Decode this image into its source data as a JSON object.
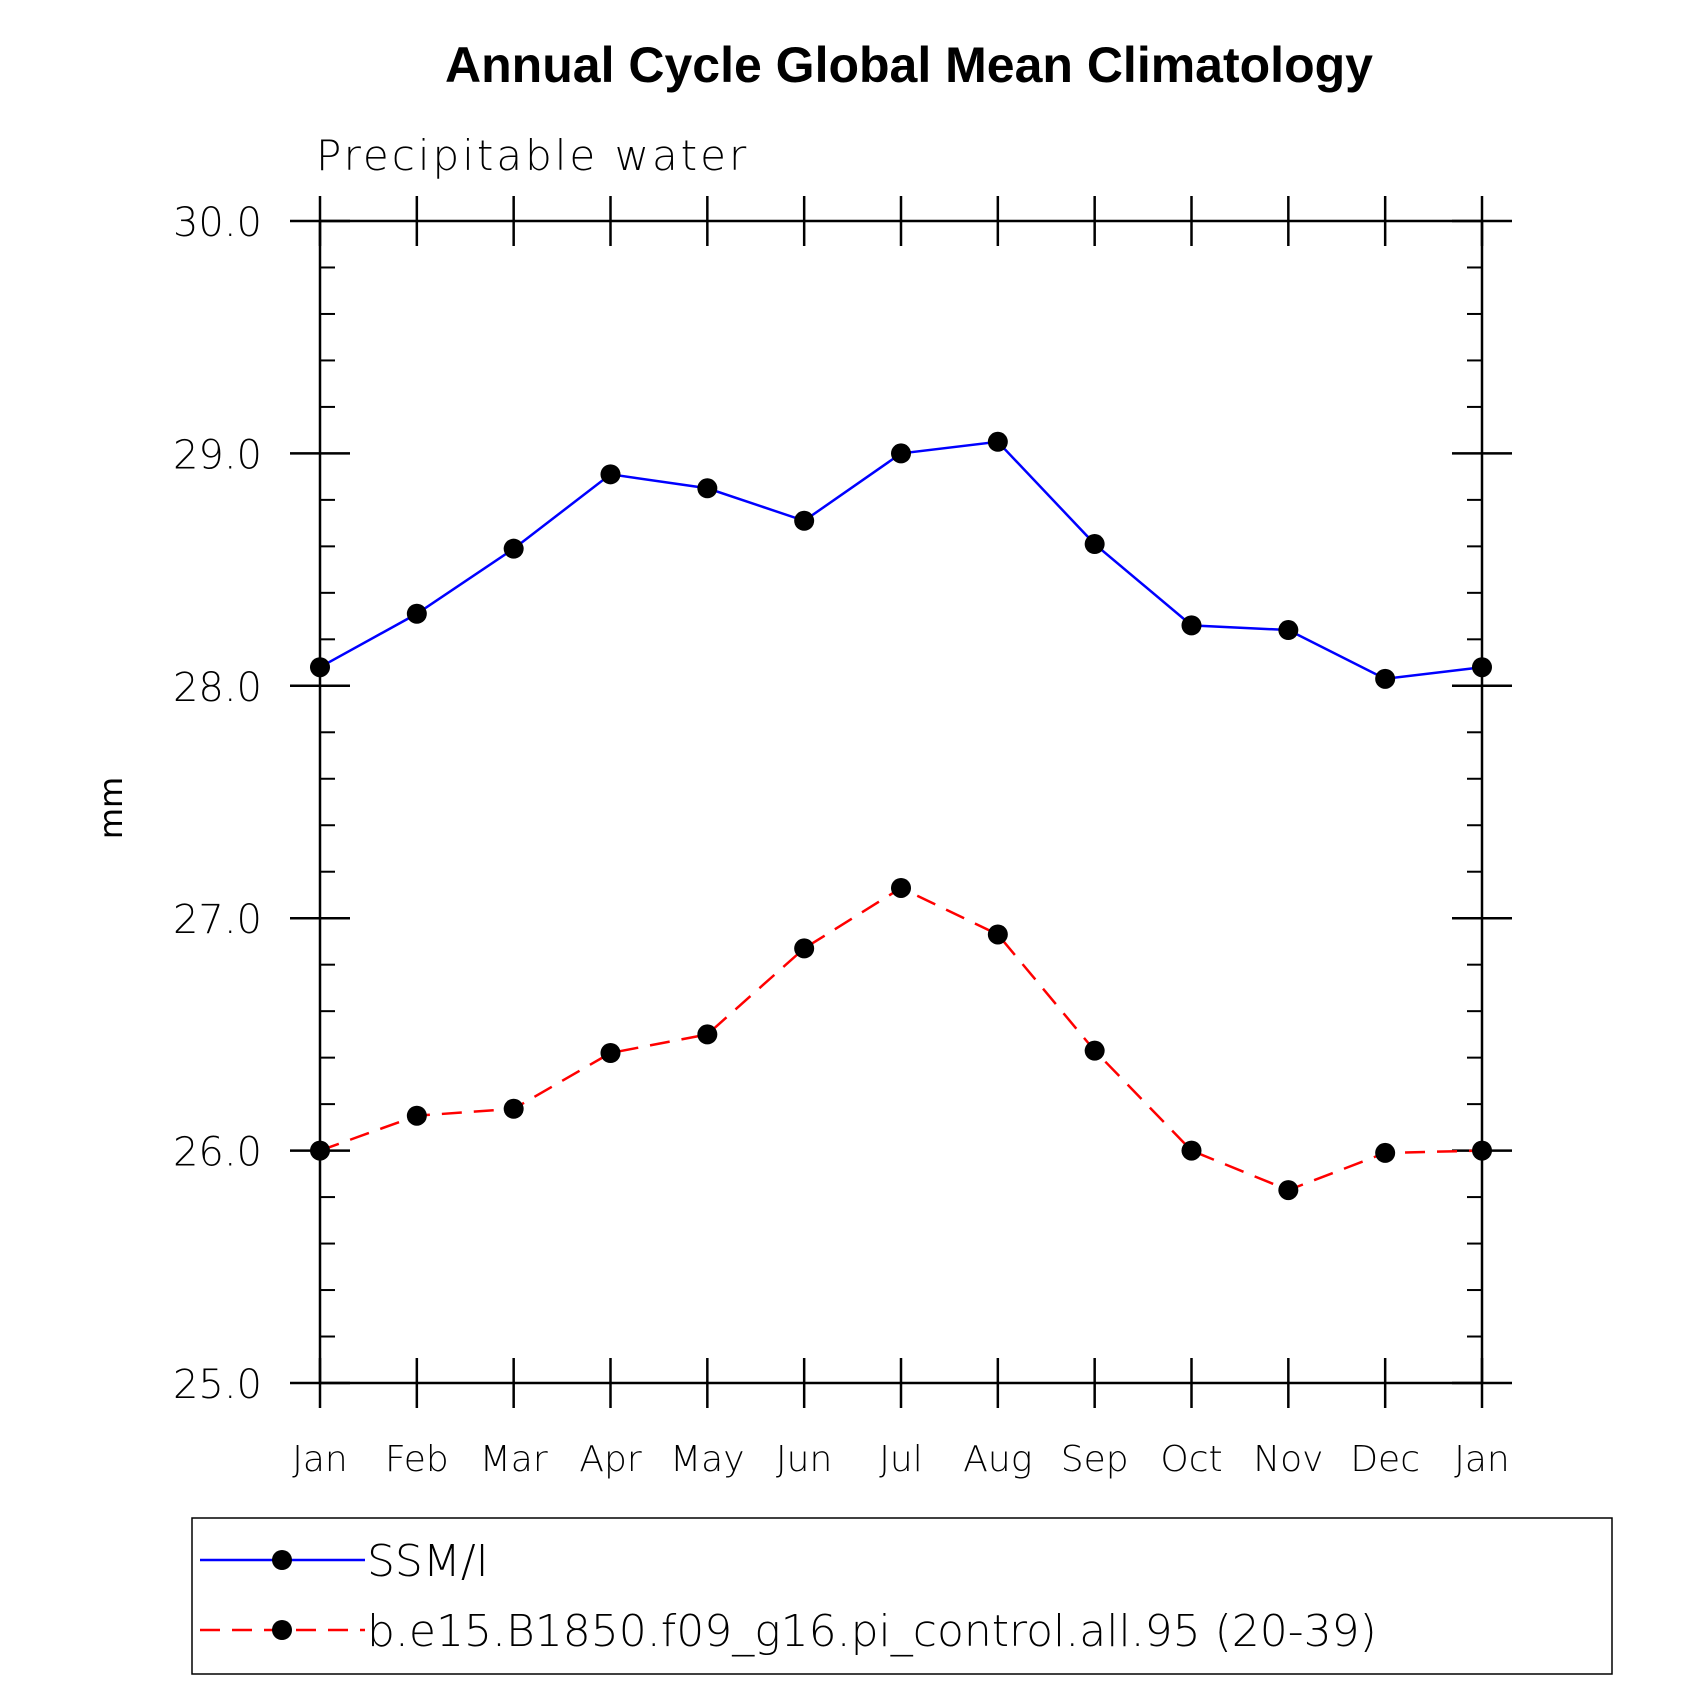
{
  "chart_data": {
    "type": "line",
    "title": "Annual Cycle Global Mean Climatology",
    "subtitle": "Precipitable water",
    "xlabel": "",
    "ylabel": "mm",
    "categories": [
      "Jan",
      "Feb",
      "Mar",
      "Apr",
      "May",
      "Jun",
      "Jul",
      "Aug",
      "Sep",
      "Oct",
      "Nov",
      "Dec",
      "Jan"
    ],
    "ylim": [
      25.0,
      30.0
    ],
    "yticks": [
      "25.0",
      "26.0",
      "27.0",
      "28.0",
      "29.0",
      "30.0"
    ],
    "ytick_values": [
      25.0,
      26.0,
      27.0,
      28.0,
      29.0,
      30.0
    ],
    "y_minor_step": 0.2,
    "grid": false,
    "legend_position": "bottom",
    "series": [
      {
        "name": "SSM/I",
        "color": "#0000ff",
        "line_style": "solid",
        "marker": "filled-circle",
        "values": [
          28.08,
          28.31,
          28.59,
          28.91,
          28.85,
          28.71,
          29.0,
          29.05,
          28.61,
          28.26,
          28.24,
          28.03,
          28.08
        ]
      },
      {
        "name": "b.e15.B1850.f09_g16.pi_control.all.95 (20-39)",
        "color": "#ff0000",
        "line_style": "dashed",
        "marker": "filled-circle",
        "values": [
          26.0,
          26.15,
          26.18,
          26.42,
          26.5,
          26.87,
          27.13,
          26.93,
          26.43,
          26.0,
          25.83,
          25.99,
          26.0
        ]
      }
    ]
  }
}
